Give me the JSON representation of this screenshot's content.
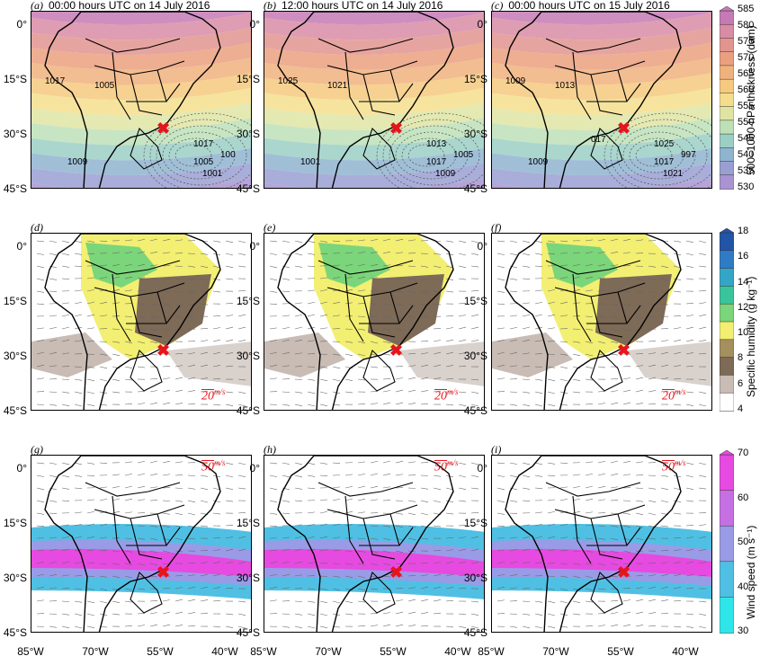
{
  "rows": [
    {
      "panels": [
        {
          "label": "(a)",
          "title": "00:00 hours UTC on 14 July 2016",
          "contours": [
            "1005",
            "1017",
            "1017",
            "1005",
            "1001",
            "1009",
            "100"
          ]
        },
        {
          "label": "(b)",
          "title": "12:00 hours UTC on 14 July 2016",
          "contours": [
            "1021",
            "1025",
            "1013",
            "1017",
            "1009",
            "1001",
            "1005"
          ]
        },
        {
          "label": "(c)",
          "title": "00:00 hours UTC on 15 July 2016",
          "contours": [
            "1013",
            "1009",
            "1025",
            "1017",
            "1021",
            "1009",
            "997",
            "017"
          ]
        }
      ]
    },
    {
      "panels": [
        {
          "label": "(d)",
          "title": "",
          "scale_num": "20",
          "scale_unit": "m/s"
        },
        {
          "label": "(e)",
          "title": "",
          "scale_num": "20",
          "scale_unit": "m/s"
        },
        {
          "label": "(f)",
          "title": "",
          "scale_num": "20",
          "scale_unit": "m/s"
        }
      ]
    },
    {
      "panels": [
        {
          "label": "(g)",
          "title": "",
          "scale_num": "50",
          "scale_unit": "m/s"
        },
        {
          "label": "(h)",
          "title": "",
          "scale_num": "50",
          "scale_unit": "m/s"
        },
        {
          "label": "(i)",
          "title": "",
          "scale_num": "50",
          "scale_unit": "m/s"
        }
      ]
    }
  ],
  "lat_labels": [
    "0°",
    "15°S",
    "30°S",
    "45°S"
  ],
  "lon_labels": [
    "85°W",
    "70°W",
    "55°W",
    "40°W"
  ],
  "colorbars": [
    {
      "title": "500–1000-hPa thickness (dam)",
      "ticks": [
        "585",
        "580",
        "575",
        "570",
        "565",
        "560",
        "555",
        "550",
        "545",
        "540",
        "535",
        "530"
      ],
      "colors": [
        "#c57ab5",
        "#d88ca5",
        "#e2948f",
        "#eaa07f",
        "#f0b27c",
        "#f5c97e",
        "#f4de8c",
        "#dfe4a3",
        "#bde0b7",
        "#9bcfc6",
        "#8fb4d0",
        "#9a9fd2",
        "#a993d0"
      ]
    },
    {
      "title": "Specific humidity (g kg⁻¹)",
      "ticks": [
        "18",
        "16",
        "14",
        "12",
        "10",
        "8",
        "6",
        "4"
      ],
      "colors": [
        "#2255a8",
        "#2f7cc5",
        "#33a6c7",
        "#39c49b",
        "#7bd57a",
        "#f2ef72",
        "#a48f5e",
        "#7d6a57",
        "#c8bcb5",
        "#ffffff"
      ]
    },
    {
      "title": "Wind speed (m s⁻¹)",
      "ticks": [
        "70",
        "60",
        "50",
        "40",
        "30"
      ],
      "colors": [
        "#e64ae0",
        "#c66fe3",
        "#9a9be6",
        "#4fc0e3",
        "#2ee6ea"
      ]
    }
  ],
  "marker_symbol": "✖"
}
